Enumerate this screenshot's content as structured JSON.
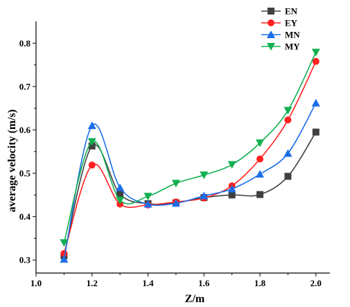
{
  "chart_data": {
    "type": "line",
    "xlabel": "Z/m",
    "ylabel": "average velocity (m/s)",
    "xlim": [
      1.0,
      2.05
    ],
    "ylim": [
      0.27,
      0.85
    ],
    "xticks": [
      1.0,
      1.2,
      1.4,
      1.6,
      1.8,
      2.0
    ],
    "xtick_labels": [
      "1.0",
      "1.2",
      "1.4",
      "1.6",
      "1.8",
      "2.0"
    ],
    "yticks": [
      0.3,
      0.4,
      0.5,
      0.6,
      0.7,
      0.8
    ],
    "ytick_labels": [
      "0.3",
      "0.4",
      "0.5",
      "0.6",
      "0.7",
      "0.8"
    ],
    "grid": false,
    "legend_position": "top-right",
    "x": [
      1.1,
      1.2,
      1.3,
      1.4,
      1.5,
      1.6,
      1.7,
      1.8,
      1.9,
      2.0
    ],
    "series": [
      {
        "name": "EN",
        "color": "#404040",
        "marker": "square",
        "values": [
          0.31,
          0.563,
          0.452,
          0.43,
          0.432,
          0.444,
          0.45,
          0.451,
          0.493,
          0.595
        ]
      },
      {
        "name": "EY",
        "color": "#ff2020",
        "marker": "circle",
        "values": [
          0.315,
          0.519,
          0.429,
          0.427,
          0.434,
          0.443,
          0.471,
          0.533,
          0.623,
          0.758
        ]
      },
      {
        "name": "MN",
        "color": "#1a6ee8",
        "marker": "triangle-up",
        "values": [
          0.302,
          0.61,
          0.467,
          0.429,
          0.431,
          0.448,
          0.464,
          0.498,
          0.546,
          0.662
        ]
      },
      {
        "name": "MY",
        "color": "#10b050",
        "marker": "triangle-down",
        "values": [
          0.34,
          0.573,
          0.438,
          0.447,
          0.477,
          0.496,
          0.52,
          0.57,
          0.645,
          0.779
        ]
      }
    ]
  }
}
